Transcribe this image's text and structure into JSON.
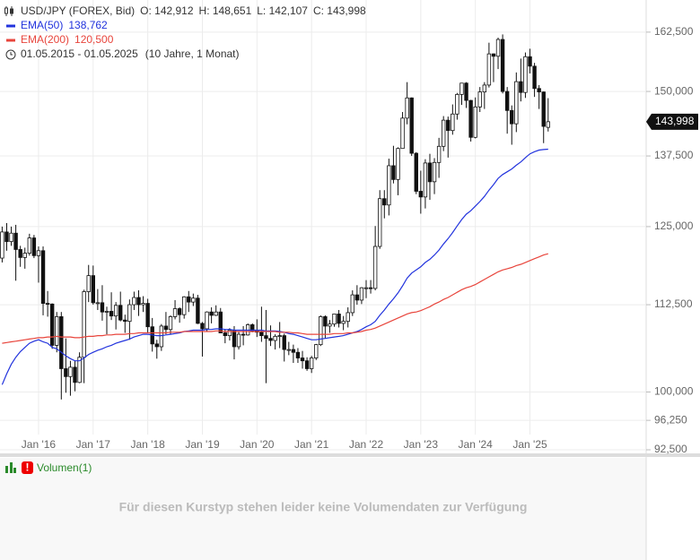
{
  "header": {
    "symbol": "USD/JPY (FOREX, Bid)",
    "ohlc": [
      "O: 142,912",
      "H: 148,651",
      "L: 142,107",
      "C: 143,998"
    ],
    "range": "01.05.2015 - 01.05.2025",
    "span": "(10 Jahre, 1 Monat)"
  },
  "chart_data": {
    "type": "candlestick",
    "log_scale": true,
    "grid": true,
    "last_label": "143,998",
    "categories": [
      null,
      null,
      null,
      null,
      null,
      null,
      null,
      null,
      "Jan '16",
      null,
      null,
      null,
      null,
      null,
      null,
      null,
      null,
      null,
      null,
      null,
      "Jan '17",
      null,
      null,
      null,
      null,
      null,
      null,
      null,
      null,
      null,
      null,
      null,
      "Jan '18",
      null,
      null,
      null,
      null,
      null,
      null,
      null,
      null,
      null,
      null,
      null,
      "Jan '19",
      null,
      null,
      null,
      null,
      null,
      null,
      null,
      null,
      null,
      null,
      null,
      "Jan '20",
      null,
      null,
      null,
      null,
      null,
      null,
      null,
      null,
      null,
      null,
      null,
      "Jan '21",
      null,
      null,
      null,
      null,
      null,
      null,
      null,
      null,
      null,
      null,
      null,
      "Jan '22",
      null,
      null,
      null,
      null,
      null,
      null,
      null,
      null,
      null,
      null,
      null,
      "Jan '23",
      null,
      null,
      null,
      null,
      null,
      null,
      null,
      null,
      null,
      null,
      null,
      "Jan '24",
      null,
      null,
      null,
      null,
      null,
      null,
      null,
      null,
      null,
      null,
      null,
      "Jan '25",
      null,
      null,
      null,
      null
    ],
    "open": [
      119.8,
      124.1,
      122.5,
      123.9,
      121.2,
      119.9,
      120.6,
      123.1,
      120.2,
      121.0,
      112.7,
      112.6,
      106.5,
      110.7,
      103.2,
      102.1,
      103.4,
      101.3,
      104.8,
      114.5,
      117.0,
      112.8,
      112.8,
      111.4,
      111.5,
      110.8,
      112.4,
      110.2,
      110.0,
      112.5,
      113.6,
      112.5,
      112.7,
      109.2,
      106.7,
      106.3,
      109.3,
      108.8,
      110.7,
      111.9,
      111.0,
      113.7,
      112.9,
      113.5,
      109.7,
      108.9,
      111.4,
      110.9,
      111.4,
      108.3,
      107.9,
      108.7,
      106.3,
      108.1,
      108.0,
      109.5,
      108.6,
      108.4,
      107.9,
      107.5,
      107.2,
      107.8,
      107.9,
      105.9,
      105.9,
      105.5,
      104.7,
      104.3,
      103.2,
      104.7,
      106.6,
      110.7,
      109.3,
      109.6,
      111.1,
      109.7,
      110.0,
      111.3,
      114.0,
      113.2,
      115.1,
      115.1,
      115.0,
      121.7,
      129.8,
      128.7,
      135.7,
      133.2,
      138.9,
      144.7,
      148.7,
      138.0,
      131.1,
      130.1,
      136.2,
      132.8,
      136.3,
      139.3,
      144.3,
      142.3,
      145.5,
      149.4,
      151.7,
      148.2,
      141.0,
      146.9,
      149.9,
      151.3,
      157.8,
      157.3,
      160.9,
      150.0,
      146.2,
      143.6,
      152.0,
      149.8,
      157.2,
      155.2,
      150.6,
      149.9,
      142.912
    ],
    "high": [
      125.0,
      125.6,
      125.0,
      125.3,
      121.8,
      121.5,
      123.8,
      123.6,
      121.7,
      121.7,
      114.6,
      112.7,
      111.4,
      111.4,
      107.5,
      104.3,
      104.3,
      105.5,
      114.8,
      118.7,
      118.6,
      114.9,
      115.5,
      112.2,
      114.4,
      112.9,
      114.5,
      111.0,
      113.3,
      114.5,
      114.7,
      113.8,
      113.4,
      110.5,
      107.3,
      109.6,
      111.4,
      110.9,
      113.2,
      112.1,
      113.8,
      114.6,
      114.2,
      114.0,
      109.9,
      111.5,
      112.1,
      112.4,
      112.0,
      108.8,
      109.0,
      109.3,
      108.5,
      109.3,
      109.7,
      109.7,
      110.3,
      112.2,
      111.7,
      109.4,
      108.1,
      109.9,
      108.2,
      107.0,
      106.6,
      106.1,
      105.7,
      104.8,
      105.0,
      106.7,
      110.9,
      110.9,
      110.2,
      111.1,
      111.7,
      110.8,
      112.1,
      114.7,
      115.5,
      115.2,
      116.3,
      116.3,
      125.1,
      131.3,
      131.3,
      137.0,
      139.4,
      139.1,
      145.9,
      151.9,
      148.8,
      138.2,
      134.8,
      136.9,
      137.9,
      137.1,
      140.9,
      145.1,
      145.0,
      147.4,
      149.7,
      151.7,
      151.9,
      148.3,
      148.8,
      150.9,
      151.9,
      160.2,
      157.9,
      161.3,
      162.0,
      150.9,
      147.2,
      153.9,
      156.8,
      158.1,
      158.9,
      155.9,
      151.3,
      150.0,
      148.651
    ],
    "low": [
      119.1,
      121.0,
      121.8,
      116.2,
      118.4,
      118.1,
      120.2,
      119.8,
      115.9,
      110.9,
      110.7,
      106.0,
      105.5,
      99.0,
      99.9,
      99.5,
      100.1,
      101.2,
      101.2,
      112.9,
      112.5,
      111.7,
      110.1,
      108.1,
      110.2,
      108.8,
      110.0,
      108.3,
      107.3,
      111.7,
      110.8,
      111.4,
      108.3,
      105.6,
      104.6,
      105.7,
      108.1,
      108.1,
      110.3,
      109.8,
      110.4,
      111.4,
      112.3,
      109.6,
      104.9,
      108.5,
      109.7,
      110.8,
      108.3,
      106.8,
      107.2,
      104.5,
      105.9,
      106.5,
      107.9,
      108.4,
      107.7,
      107.0,
      101.2,
      106.4,
      105.9,
      106.1,
      104.2,
      105.1,
      104.0,
      104.0,
      103.2,
      102.9,
      102.6,
      104.4,
      106.4,
      107.5,
      108.3,
      109.2,
      109.1,
      108.7,
      109.1,
      110.8,
      112.5,
      112.6,
      113.5,
      114.2,
      114.7,
      121.3,
      126.4,
      126.9,
      132.5,
      130.4,
      138.9,
      143.5,
      137.5,
      130.6,
      127.2,
      128.1,
      129.6,
      130.6,
      133.5,
      138.4,
      137.2,
      141.5,
      144.4,
      147.3,
      146.7,
      140.2,
      140.8,
      145.9,
      146.5,
      150.8,
      151.9,
      154.6,
      149.6,
      141.7,
      139.6,
      142.0,
      148.0,
      148.7,
      153.7,
      148.9,
      146.5,
      139.9,
      142.107
    ],
    "close": [
      124.1,
      122.5,
      123.9,
      121.2,
      119.9,
      120.6,
      123.1,
      120.2,
      121.0,
      112.7,
      112.6,
      106.5,
      110.7,
      103.2,
      102.1,
      103.4,
      101.3,
      104.8,
      114.5,
      117.0,
      112.8,
      112.8,
      111.4,
      111.5,
      110.8,
      112.4,
      110.2,
      110.0,
      112.5,
      113.6,
      112.5,
      112.7,
      109.2,
      106.7,
      106.3,
      109.3,
      108.8,
      110.7,
      111.9,
      111.0,
      113.7,
      112.9,
      113.5,
      109.7,
      108.9,
      111.4,
      110.9,
      111.4,
      108.3,
      107.9,
      108.7,
      106.3,
      108.1,
      108.0,
      109.5,
      108.6,
      108.4,
      107.9,
      107.5,
      107.2,
      107.8,
      107.9,
      105.9,
      105.9,
      105.5,
      104.7,
      104.3,
      103.2,
      104.7,
      106.6,
      110.7,
      109.3,
      109.6,
      111.1,
      109.7,
      110.0,
      111.3,
      114.0,
      113.2,
      115.1,
      115.1,
      115.0,
      121.7,
      129.8,
      128.7,
      135.7,
      133.2,
      138.9,
      144.7,
      148.7,
      138.0,
      131.1,
      130.1,
      136.2,
      132.8,
      136.3,
      139.3,
      144.3,
      142.3,
      145.5,
      149.4,
      151.7,
      148.2,
      141.0,
      146.9,
      149.9,
      151.3,
      157.8,
      157.3,
      160.9,
      150.0,
      146.2,
      143.6,
      152.0,
      149.8,
      157.2,
      155.2,
      150.6,
      149.9,
      143.1,
      143.998
    ],
    "series": [
      {
        "name": "EMA(50)",
        "color": "#2233dd",
        "last_label": "138,762",
        "values": [
          101.0,
          102.5,
          103.8,
          104.8,
          105.6,
          106.2,
          106.8,
          107.1,
          107.3,
          107.0,
          106.8,
          106.2,
          106.0,
          105.5,
          105.0,
          104.6,
          104.3,
          104.3,
          104.7,
          105.2,
          105.5,
          105.8,
          106.0,
          106.3,
          106.5,
          106.8,
          107.0,
          107.2,
          107.4,
          107.7,
          107.9,
          108.1,
          108.1,
          108.0,
          107.9,
          107.9,
          108.0,
          108.1,
          108.2,
          108.3,
          108.5,
          108.6,
          108.7,
          108.7,
          108.7,
          108.8,
          108.8,
          108.9,
          108.9,
          108.8,
          108.8,
          108.7,
          108.7,
          108.7,
          108.7,
          108.7,
          108.7,
          108.7,
          108.6,
          108.6,
          108.6,
          108.5,
          108.4,
          108.2,
          108.1,
          107.9,
          107.7,
          107.5,
          107.3,
          107.3,
          107.4,
          107.5,
          107.6,
          107.7,
          107.8,
          107.9,
          108.1,
          108.3,
          108.5,
          108.8,
          109.2,
          109.5,
          110.0,
          110.9,
          111.7,
          112.6,
          113.4,
          114.3,
          115.4,
          116.6,
          117.4,
          117.9,
          118.4,
          119.1,
          119.6,
          120.3,
          121.1,
          122.1,
          123.0,
          124.0,
          125.1,
          126.2,
          127.1,
          127.7,
          128.5,
          129.3,
          130.2,
          131.3,
          132.3,
          133.4,
          134.1,
          134.6,
          135.1,
          135.8,
          136.4,
          137.2,
          137.9,
          138.3,
          138.6,
          138.7,
          138.762
        ]
      },
      {
        "name": "EMA(200)",
        "color": "#e8453c",
        "last_label": "120,500",
        "values": [
          106.8,
          106.9,
          107.0,
          107.1,
          107.2,
          107.3,
          107.4,
          107.5,
          107.6,
          107.6,
          107.7,
          107.7,
          107.8,
          107.7,
          107.7,
          107.7,
          107.6,
          107.6,
          107.7,
          107.8,
          107.8,
          107.9,
          107.9,
          108.0,
          108.0,
          108.1,
          108.1,
          108.1,
          108.2,
          108.2,
          108.3,
          108.3,
          108.3,
          108.3,
          108.3,
          108.3,
          108.3,
          108.4,
          108.4,
          108.4,
          108.5,
          108.5,
          108.5,
          108.5,
          108.5,
          108.5,
          108.5,
          108.6,
          108.6,
          108.5,
          108.5,
          108.5,
          108.5,
          108.5,
          108.5,
          108.5,
          108.5,
          108.5,
          108.5,
          108.5,
          108.5,
          108.4,
          108.4,
          108.4,
          108.3,
          108.3,
          108.2,
          108.1,
          108.1,
          108.1,
          108.1,
          108.1,
          108.1,
          108.2,
          108.2,
          108.2,
          108.3,
          108.3,
          108.4,
          108.5,
          108.7,
          108.8,
          109.0,
          109.3,
          109.6,
          109.9,
          110.2,
          110.5,
          110.8,
          111.1,
          111.3,
          111.4,
          111.6,
          111.9,
          112.2,
          112.6,
          112.9,
          113.3,
          113.6,
          114.0,
          114.4,
          114.8,
          115.1,
          115.3,
          115.6,
          116.0,
          116.4,
          116.8,
          117.2,
          117.6,
          117.9,
          118.1,
          118.3,
          118.6,
          118.8,
          119.1,
          119.4,
          119.7,
          120.0,
          120.3,
          120.5
        ]
      }
    ],
    "ylim": [
      92.5,
      169.7
    ],
    "yticks": [
      {
        "value": 162.5,
        "label": "162,500"
      },
      {
        "value": 150,
        "label": "150,000"
      },
      {
        "value": 137.5,
        "label": "137,500"
      },
      {
        "value": 125,
        "label": "125,000"
      },
      {
        "value": 112.5,
        "label": "112,500"
      },
      {
        "value": 100,
        "label": "100,000"
      },
      {
        "value": 96.25,
        "label": "96,250"
      },
      {
        "value": 92.5,
        "label": "92,500"
      }
    ]
  },
  "volume_panel": {
    "title": "Volumen(1)",
    "message": "Für diesen Kurstyp stehen leider keine Volumendaten zur Verfügung"
  }
}
